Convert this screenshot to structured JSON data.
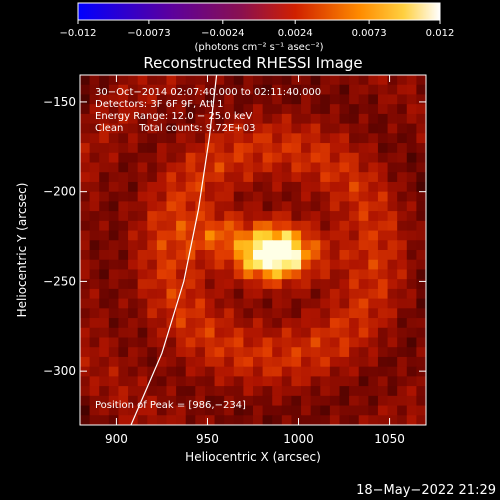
{
  "chart_data": {
    "type": "heatmap",
    "title": "Reconstructed RHESSI Image",
    "xlabel": "Heliocentric X (arcsec)",
    "ylabel": "Heliocentric Y (arcsec)",
    "xlim": [
      880,
      1070
    ],
    "ylim": [
      -330,
      -135
    ],
    "x_ticks": [
      900,
      950,
      1000,
      1050
    ],
    "y_ticks": [
      -150,
      -200,
      -250,
      -300
    ],
    "x_tick_labels": [
      "900",
      "950",
      "1000",
      "1050"
    ],
    "y_tick_labels": [
      "−150",
      "−200",
      "−250",
      "−300"
    ],
    "colorbar": {
      "min": -0.012,
      "max": 0.012,
      "tick_values": [
        -0.012,
        -0.0073,
        -0.0024,
        0.0024,
        0.0073,
        0.012
      ],
      "tick_labels": [
        "−0.012",
        "−0.0073",
        "−0.0024",
        "0.0024",
        "0.0073",
        "0.012"
      ],
      "units_label": "(photons cm⁻² s⁻¹ asec⁻²)"
    },
    "annotations": [
      "30−Oct−2014 02:07:40.000 to 02:11:40.000",
      "Detectors: 3F 6F 9F, Att 1",
      "Energy Range: 12.0 − 25.0 keV",
      "Clean     Total counts: 9.72E+03"
    ],
    "peak_label": "Position of Peak = [986,−234]",
    "peak": {
      "x": 986,
      "y": -234
    },
    "limb_curve": [
      [
        908,
        -330
      ],
      [
        925,
        -290
      ],
      [
        937,
        -250
      ],
      [
        945,
        -210
      ],
      [
        951,
        -170
      ],
      [
        955,
        -135
      ]
    ],
    "grid": false
  },
  "footer_timestamp": "18−May−2022 21:29"
}
